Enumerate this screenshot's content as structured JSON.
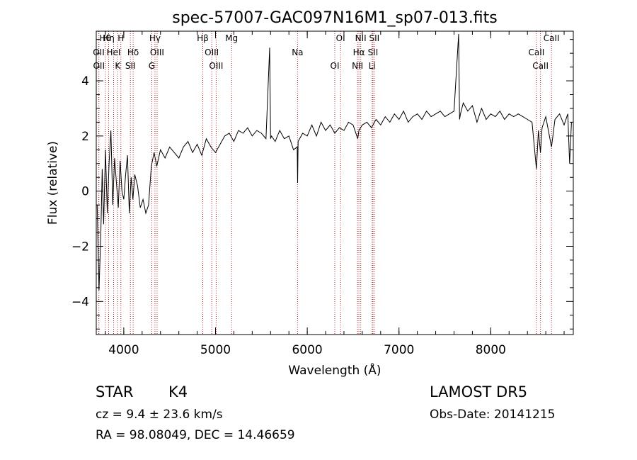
{
  "chart_data": {
    "type": "line",
    "title": "spec-57007-GAC097N16M1_sp07-013.fits",
    "xlabel": "Wavelength (Å)",
    "ylabel": "Flux (relative)",
    "xlim": [
      3700,
      8900
    ],
    "ylim": [
      -5.2,
      5.8
    ],
    "xticks": [
      4000,
      5000,
      6000,
      7000,
      8000
    ],
    "yticks": [
      -4,
      -2,
      0,
      2,
      4
    ],
    "grid": false,
    "series": [
      {
        "values_x": [
          3710,
          3730,
          3750,
          3765,
          3780,
          3800,
          3820,
          3840,
          3860,
          3880,
          3900,
          3920,
          3940,
          3960,
          3980,
          4000,
          4020,
          4040,
          4060,
          4080,
          4100,
          4120,
          4150,
          4180,
          4210,
          4240,
          4270,
          4300,
          4330,
          4360,
          4400,
          4450,
          4500,
          4550,
          4600,
          4650,
          4700,
          4750,
          4800,
          4850,
          4900,
          4950,
          5000,
          5050,
          5100,
          5150,
          5200,
          5250,
          5300,
          5350,
          5400,
          5450,
          5500,
          5550,
          5590,
          5600,
          5610,
          5650,
          5700,
          5750,
          5800,
          5850,
          5890,
          5895,
          5900,
          5950,
          6000,
          6050,
          6100,
          6150,
          6200,
          6250,
          6300,
          6350,
          6400,
          6450,
          6500,
          6550,
          6563,
          6600,
          6650,
          6700,
          6750,
          6800,
          6850,
          6900,
          6950,
          7000,
          7050,
          7100,
          7150,
          7200,
          7250,
          7300,
          7350,
          7400,
          7450,
          7500,
          7550,
          7600,
          7650,
          7660,
          7670,
          7700,
          7750,
          7800,
          7850,
          7900,
          7950,
          8000,
          8050,
          8100,
          8150,
          8200,
          8250,
          8300,
          8350,
          8400,
          8450,
          8498,
          8520,
          8542,
          8560,
          8600,
          8662,
          8700,
          8750,
          8800,
          8840,
          8860,
          8880
        ],
        "values_y": [
          -0.5,
          -3.6,
          -1.5,
          0.8,
          -1.2,
          1.5,
          -0.8,
          1.0,
          2.2,
          -0.5,
          1.2,
          0.3,
          -0.6,
          1.1,
          0.0,
          -0.3,
          0.6,
          1.3,
          -0.8,
          0.5,
          -0.3,
          0.6,
          0.2,
          -0.6,
          -0.3,
          -0.8,
          -0.5,
          0.9,
          1.4,
          0.9,
          1.5,
          1.2,
          1.6,
          1.4,
          1.2,
          1.6,
          1.8,
          1.4,
          1.7,
          1.3,
          1.9,
          1.6,
          1.4,
          1.7,
          2.0,
          2.1,
          1.8,
          2.2,
          2.1,
          2.3,
          2.0,
          2.2,
          2.1,
          1.9,
          5.2,
          1.9,
          2.0,
          1.8,
          2.2,
          1.9,
          2.0,
          1.5,
          1.6,
          0.3,
          1.8,
          2.1,
          2.0,
          2.4,
          2.0,
          2.5,
          2.2,
          2.4,
          2.1,
          2.3,
          2.2,
          2.5,
          2.4,
          1.9,
          2.2,
          2.4,
          2.5,
          2.3,
          2.6,
          2.4,
          2.7,
          2.5,
          2.8,
          2.6,
          2.9,
          2.5,
          2.7,
          2.8,
          2.6,
          2.9,
          2.7,
          2.8,
          2.9,
          2.7,
          2.8,
          2.9,
          5.7,
          2.6,
          2.8,
          3.2,
          2.9,
          3.1,
          2.5,
          3.0,
          2.6,
          2.8,
          2.7,
          2.9,
          2.6,
          2.8,
          2.7,
          2.8,
          2.7,
          2.6,
          2.5,
          0.8,
          2.2,
          1.4,
          2.3,
          2.7,
          1.6,
          2.6,
          2.8,
          2.4,
          2.8,
          1.0,
          2.5
        ]
      }
    ],
    "lines": [
      {
        "label": "Hθ",
        "x": 3798
      },
      {
        "label": "OII",
        "x": 3727
      },
      {
        "label": "OII",
        "x": 3729
      },
      {
        "label": "Hη",
        "x": 3835
      },
      {
        "label": "HeI",
        "x": 3889
      },
      {
        "label": "K",
        "x": 3934
      },
      {
        "label": "H",
        "x": 3968
      },
      {
        "label": "Hδ",
        "x": 4102
      },
      {
        "label": "SII",
        "x": 4072
      },
      {
        "label": "Hγ",
        "x": 4340
      },
      {
        "label": "OIII",
        "x": 4363
      },
      {
        "label": "G",
        "x": 4305
      },
      {
        "label": "Hβ",
        "x": 4861
      },
      {
        "label": "OIII",
        "x": 4959
      },
      {
        "label": "OIII",
        "x": 5007
      },
      {
        "label": "Mg",
        "x": 5175
      },
      {
        "label": "Na",
        "x": 5894
      },
      {
        "label": "OI",
        "x": 6300
      },
      {
        "label": "OI",
        "x": 6363
      },
      {
        "label": "Hα",
        "x": 6563
      },
      {
        "label": "NII",
        "x": 6548
      },
      {
        "label": "NII",
        "x": 6583
      },
      {
        "label": "SII",
        "x": 6716
      },
      {
        "label": "Li",
        "x": 6707
      },
      {
        "label": "SII",
        "x": 6731
      },
      {
        "label": "CaII",
        "x": 8498
      },
      {
        "label": "CaII",
        "x": 8542
      },
      {
        "label": "CaII",
        "x": 8662
      }
    ]
  },
  "info": {
    "object_class": "STAR",
    "subclass": "K4",
    "survey": "LAMOST  DR5",
    "redshift_line": "cz = 9.4 ± 23.6 km/s",
    "obs_date": "Obs-Date: 20141215",
    "coords": "RA =  98.08049, DEC =  14.46659"
  },
  "colors": {
    "spectrum": "#000000",
    "line_markers": "#b22222",
    "axes": "#000000"
  }
}
